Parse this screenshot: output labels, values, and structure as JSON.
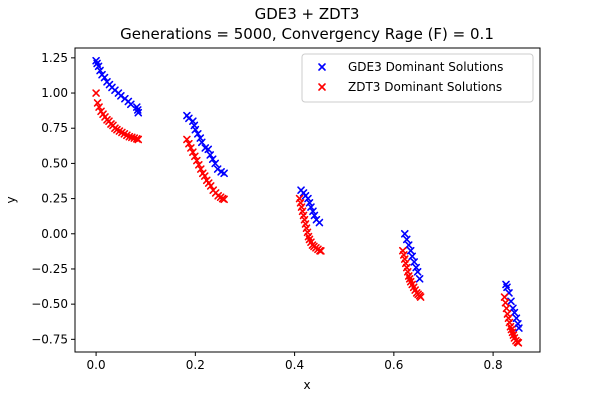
{
  "chart_data": {
    "type": "scatter",
    "title": "GDE3 + ZDT3",
    "subtitle": "Generations = 5000, Convergency Rage (F) = 0.1",
    "xlabel": "x",
    "ylabel": "y",
    "xlim": [
      -0.0425,
      0.8945
    ],
    "ylim": [
      -0.84,
      1.32
    ],
    "xticks": [
      0.0,
      0.2,
      0.4,
      0.6,
      0.8
    ],
    "xtick_labels": [
      "0.0",
      "0.2",
      "0.4",
      "0.6",
      "0.8"
    ],
    "yticks": [
      -0.75,
      -0.5,
      -0.25,
      0.0,
      0.25,
      0.5,
      0.75,
      1.0,
      1.25
    ],
    "ytick_labels": [
      "−0.75",
      "−0.50",
      "−0.25",
      "0.00",
      "0.25",
      "0.50",
      "0.75",
      "1.00",
      "1.25"
    ],
    "grid": false,
    "legend": "upper right",
    "marker": "X",
    "series": [
      {
        "name": "GDE3 Dominant Solutions",
        "color": "#0000ff",
        "points": [
          [
            0.0,
            1.23
          ],
          [
            0.002,
            1.21
          ],
          [
            0.005,
            1.19
          ],
          [
            0.008,
            1.16
          ],
          [
            0.012,
            1.13
          ],
          [
            0.017,
            1.11
          ],
          [
            0.022,
            1.08
          ],
          [
            0.027,
            1.06
          ],
          [
            0.032,
            1.04
          ],
          [
            0.038,
            1.02
          ],
          [
            0.045,
            1.0
          ],
          [
            0.05,
            0.98
          ],
          [
            0.058,
            0.96
          ],
          [
            0.065,
            0.94
          ],
          [
            0.07,
            0.92
          ],
          [
            0.082,
            0.9
          ],
          [
            0.084,
            0.88
          ],
          [
            0.085,
            0.86
          ],
          [
            0.183,
            0.84
          ],
          [
            0.187,
            0.82
          ],
          [
            0.195,
            0.8
          ],
          [
            0.198,
            0.77
          ],
          [
            0.2,
            0.74
          ],
          [
            0.205,
            0.71
          ],
          [
            0.21,
            0.68
          ],
          [
            0.213,
            0.65
          ],
          [
            0.22,
            0.61
          ],
          [
            0.226,
            0.6
          ],
          [
            0.23,
            0.56
          ],
          [
            0.235,
            0.53
          ],
          [
            0.24,
            0.5
          ],
          [
            0.245,
            0.46
          ],
          [
            0.252,
            0.44
          ],
          [
            0.258,
            0.43
          ],
          [
            0.413,
            0.31
          ],
          [
            0.418,
            0.29
          ],
          [
            0.422,
            0.27
          ],
          [
            0.427,
            0.25
          ],
          [
            0.43,
            0.22
          ],
          [
            0.433,
            0.19
          ],
          [
            0.437,
            0.16
          ],
          [
            0.44,
            0.13
          ],
          [
            0.444,
            0.1
          ],
          [
            0.45,
            0.08
          ],
          [
            0.622,
            0.0
          ],
          [
            0.626,
            -0.04
          ],
          [
            0.63,
            -0.08
          ],
          [
            0.634,
            -0.12
          ],
          [
            0.637,
            -0.16
          ],
          [
            0.641,
            -0.2
          ],
          [
            0.645,
            -0.24
          ],
          [
            0.648,
            -0.27
          ],
          [
            0.652,
            -0.32
          ],
          [
            0.826,
            -0.36
          ],
          [
            0.828,
            -0.38
          ],
          [
            0.832,
            -0.42
          ],
          [
            0.836,
            -0.48
          ],
          [
            0.84,
            -0.53
          ],
          [
            0.843,
            -0.56
          ],
          [
            0.847,
            -0.6
          ],
          [
            0.85,
            -0.64
          ],
          [
            0.852,
            -0.67
          ]
        ]
      },
      {
        "name": "ZDT3 Dominant Solutions",
        "color": "#ff0000",
        "points": [
          [
            0.0,
            1.0
          ],
          [
            0.003,
            0.93
          ],
          [
            0.006,
            0.9
          ],
          [
            0.01,
            0.87
          ],
          [
            0.014,
            0.85
          ],
          [
            0.018,
            0.83
          ],
          [
            0.022,
            0.81
          ],
          [
            0.026,
            0.8
          ],
          [
            0.03,
            0.78
          ],
          [
            0.034,
            0.77
          ],
          [
            0.038,
            0.75
          ],
          [
            0.042,
            0.74
          ],
          [
            0.047,
            0.73
          ],
          [
            0.052,
            0.72
          ],
          [
            0.057,
            0.71
          ],
          [
            0.062,
            0.7
          ],
          [
            0.067,
            0.69
          ],
          [
            0.072,
            0.685
          ],
          [
            0.077,
            0.68
          ],
          [
            0.082,
            0.675
          ],
          [
            0.085,
            0.67
          ],
          [
            0.183,
            0.67
          ],
          [
            0.187,
            0.64
          ],
          [
            0.191,
            0.61
          ],
          [
            0.195,
            0.58
          ],
          [
            0.199,
            0.55
          ],
          [
            0.203,
            0.52
          ],
          [
            0.207,
            0.49
          ],
          [
            0.211,
            0.46
          ],
          [
            0.215,
            0.43
          ],
          [
            0.219,
            0.41
          ],
          [
            0.223,
            0.38
          ],
          [
            0.227,
            0.36
          ],
          [
            0.231,
            0.34
          ],
          [
            0.236,
            0.31
          ],
          [
            0.241,
            0.29
          ],
          [
            0.246,
            0.27
          ],
          [
            0.251,
            0.26
          ],
          [
            0.255,
            0.25
          ],
          [
            0.258,
            0.245
          ],
          [
            0.41,
            0.25
          ],
          [
            0.412,
            0.22
          ],
          [
            0.414,
            0.19
          ],
          [
            0.416,
            0.16
          ],
          [
            0.418,
            0.13
          ],
          [
            0.42,
            0.1
          ],
          [
            0.422,
            0.07
          ],
          [
            0.424,
            0.04
          ],
          [
            0.426,
            0.01
          ],
          [
            0.428,
            -0.02
          ],
          [
            0.43,
            -0.04
          ],
          [
            0.433,
            -0.06
          ],
          [
            0.436,
            -0.08
          ],
          [
            0.439,
            -0.09
          ],
          [
            0.443,
            -0.1
          ],
          [
            0.447,
            -0.11
          ],
          [
            0.451,
            -0.12
          ],
          [
            0.453,
            -0.122
          ],
          [
            0.618,
            -0.12
          ],
          [
            0.62,
            -0.15
          ],
          [
            0.622,
            -0.18
          ],
          [
            0.624,
            -0.21
          ],
          [
            0.626,
            -0.24
          ],
          [
            0.628,
            -0.27
          ],
          [
            0.63,
            -0.3
          ],
          [
            0.632,
            -0.32
          ],
          [
            0.634,
            -0.34
          ],
          [
            0.637,
            -0.36
          ],
          [
            0.64,
            -0.38
          ],
          [
            0.643,
            -0.4
          ],
          [
            0.646,
            -0.42
          ],
          [
            0.649,
            -0.43
          ],
          [
            0.652,
            -0.44
          ],
          [
            0.654,
            -0.45
          ],
          [
            0.823,
            -0.45
          ],
          [
            0.825,
            -0.49
          ],
          [
            0.827,
            -0.53
          ],
          [
            0.829,
            -0.57
          ],
          [
            0.831,
            -0.6
          ],
          [
            0.833,
            -0.63
          ],
          [
            0.835,
            -0.66
          ],
          [
            0.837,
            -0.68
          ],
          [
            0.839,
            -0.7
          ],
          [
            0.841,
            -0.72
          ],
          [
            0.843,
            -0.74
          ],
          [
            0.846,
            -0.76
          ],
          [
            0.849,
            -0.77
          ],
          [
            0.851,
            -0.775
          ]
        ]
      }
    ]
  }
}
